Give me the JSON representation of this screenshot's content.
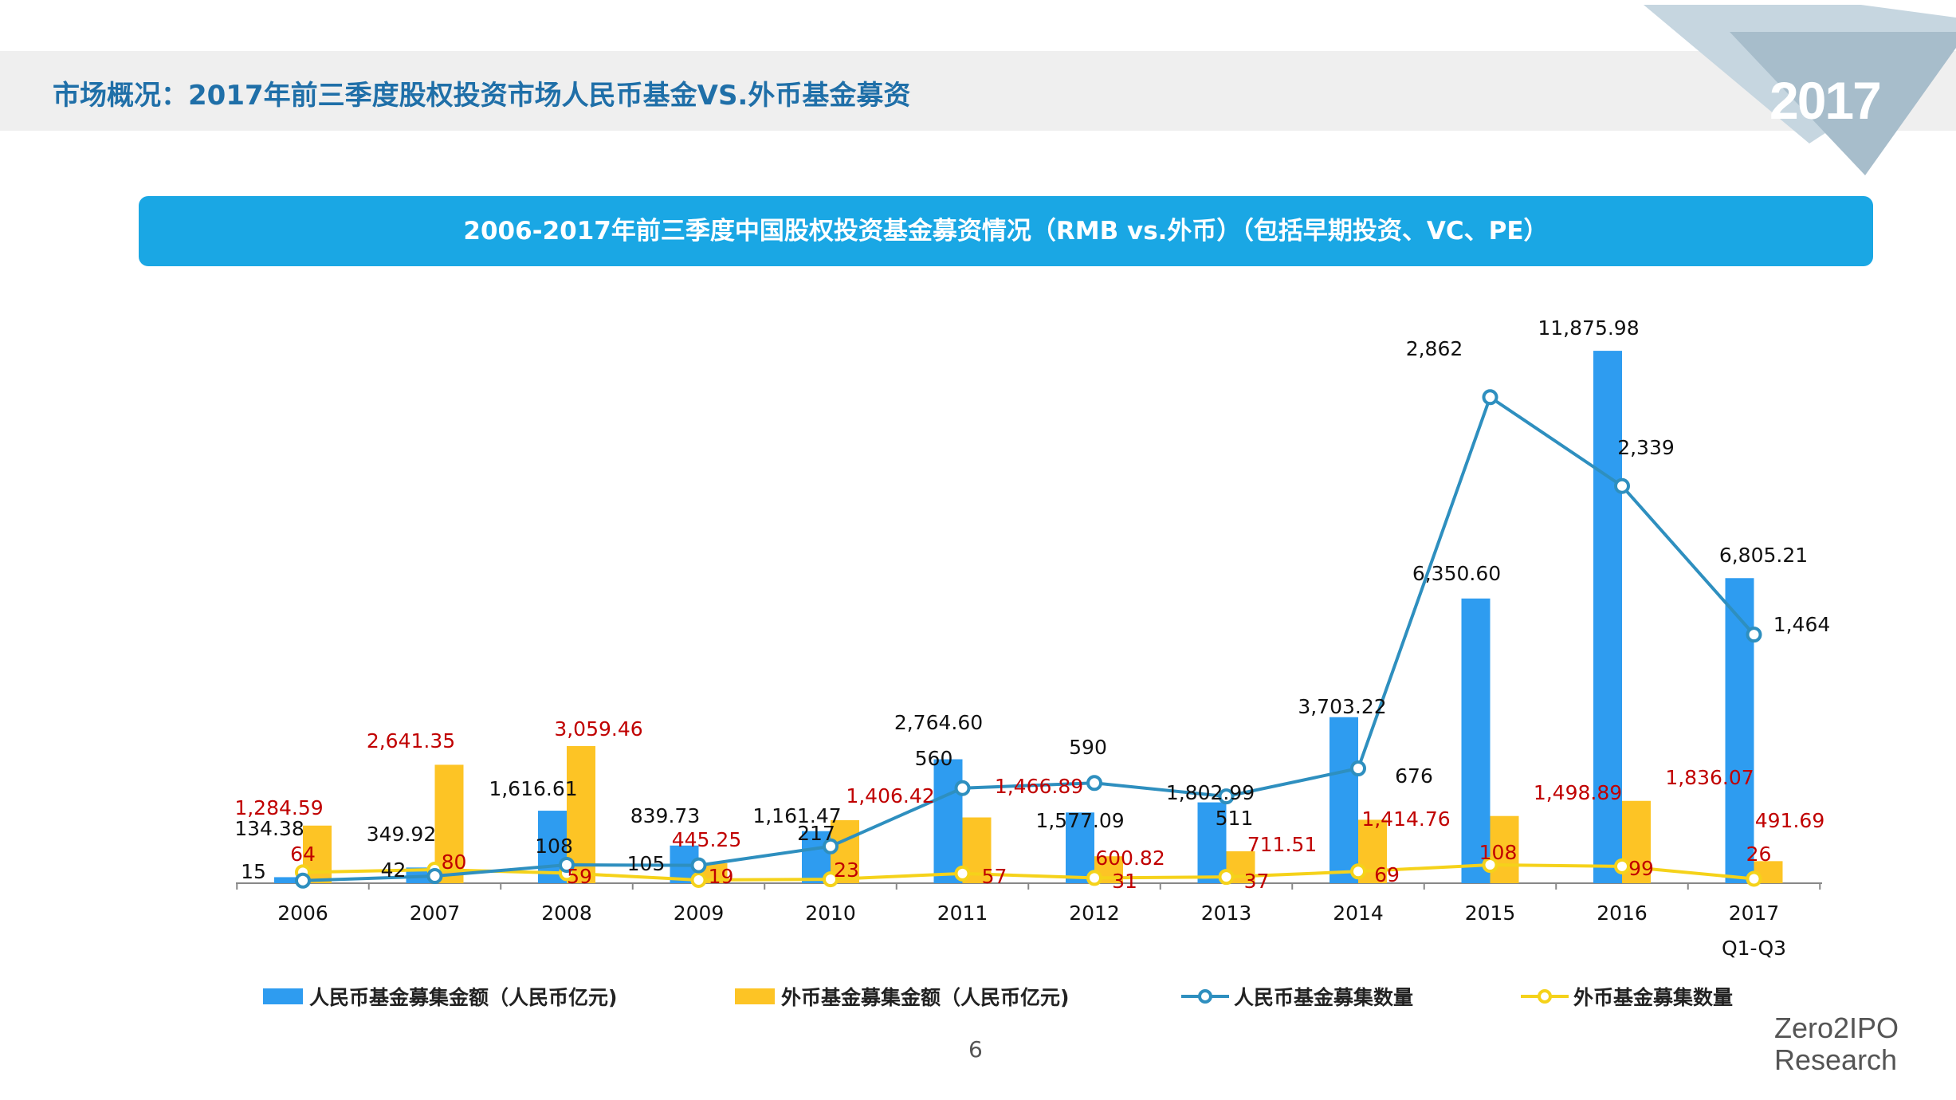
{
  "header": {
    "title": "市场概况：2017年前三季度股权投资市场人民币基金VS.外币基金募资",
    "year_badge": "2017"
  },
  "banner": {
    "title": "2006-2017年前三季度中国股权投资基金募资情况（RMB vs.外币）（包括早期投资、VC、PE）"
  },
  "colors": {
    "rmb_bar": "#2e9cf0",
    "fx_bar": "#fdc425",
    "rmb_line": "#2e8fbf",
    "fx_line": "#f5d21a",
    "fx_label": "#c00000",
    "banner": "#1aa7e4",
    "title": "#1f6fa8"
  },
  "chart_data": {
    "type": "bar",
    "categories": [
      "2006",
      "2007",
      "2008",
      "2009",
      "2010",
      "2011",
      "2012",
      "2013",
      "2014",
      "2015",
      "2016",
      "2017"
    ],
    "category_sublabel": {
      "2017": "Q1-Q3"
    },
    "series": [
      {
        "name": "人民币基金募集金额（人民币亿元)",
        "kind": "bar",
        "axis": "left",
        "values": [
          134.38,
          349.92,
          1616.61,
          839.73,
          1161.47,
          2764.6,
          1577.09,
          1802.99,
          3703.22,
          6350.6,
          11875.98,
          6805.21
        ],
        "labels": [
          "134.38",
          "349.92",
          "1,616.61",
          "839.73",
          "1,161.47",
          "2,764.60",
          "1,577.09",
          "1,802.99",
          "3,703.22",
          "6,350.60",
          "11,875.98",
          "6,805.21"
        ]
      },
      {
        "name": "外币基金募集金额（人民币亿元)",
        "kind": "bar",
        "axis": "left",
        "values": [
          1284.59,
          2641.35,
          3059.46,
          445.25,
          1406.42,
          1466.89,
          600.82,
          711.51,
          1414.76,
          1498.89,
          1836.07,
          491.69
        ],
        "labels": [
          "1,284.59",
          "2,641.35",
          "3,059.46",
          "445.25",
          "1,406.42",
          "1,466.89",
          "600.82",
          "711.51",
          "1,414.76",
          "1,498.89",
          "1,836.07",
          "491.69"
        ]
      },
      {
        "name": "人民币基金募集数量",
        "kind": "line",
        "axis": "right",
        "values": [
          15,
          42,
          108,
          105,
          217,
          560,
          590,
          511,
          676,
          2862,
          2339,
          1464
        ],
        "labels": [
          "15",
          "42",
          "108",
          "105",
          "217",
          "560",
          "590",
          "511",
          "676",
          "2,862",
          "2,339",
          "1,464"
        ]
      },
      {
        "name": "外币基金募集数量",
        "kind": "line",
        "axis": "right",
        "values": [
          64,
          80,
          59,
          19,
          23,
          57,
          31,
          37,
          69,
          108,
          99,
          26
        ],
        "labels": [
          "64",
          "80",
          "59",
          "19",
          "23",
          "57",
          "31",
          "37",
          "69",
          "108",
          "99",
          "26"
        ]
      }
    ],
    "left_axis_range": [
      0,
      12500
    ],
    "right_axis_range": [
      0,
      3300
    ],
    "grid": false,
    "legend_position": "bottom"
  },
  "footer": {
    "page_number": "6",
    "brand_line1": "Zero2IPO",
    "brand_line2": "Research"
  }
}
